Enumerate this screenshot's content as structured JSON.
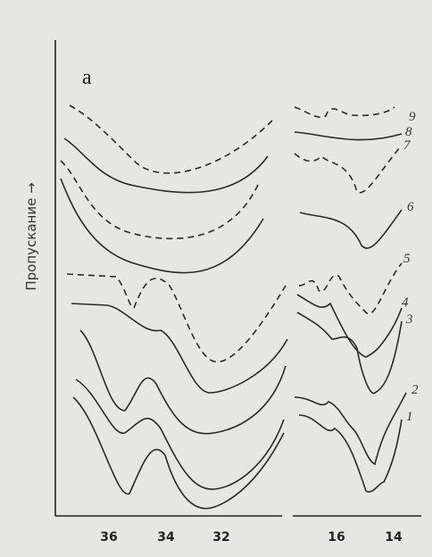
{
  "figure": {
    "panel_label": "а",
    "y_label": "Пропускание →",
    "x_ticks": [
      "36",
      "34",
      "32",
      "16",
      "14"
    ],
    "curve_labels": [
      "9",
      "8",
      "7",
      "6",
      "5",
      "4",
      "3",
      "2",
      "1"
    ]
  }
}
